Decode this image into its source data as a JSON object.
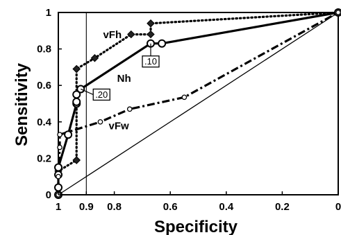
{
  "chart_data": {
    "type": "line",
    "xlabel": "Specificity",
    "ylabel": "Sensitivity",
    "xlim": [
      1,
      0
    ],
    "ylim": [
      0,
      1
    ],
    "x_reversed": true,
    "x_ticks": [
      1,
      0.9,
      0.8,
      0.6,
      0.4,
      0.2,
      0
    ],
    "x_tick_labels": [
      "1",
      "0.9",
      "0.8",
      "0.6",
      "0.4",
      "0.2",
      "0"
    ],
    "y_ticks": [
      0,
      0.2,
      0.4,
      0.6,
      0.8,
      1
    ],
    "y_tick_labels": [
      "0",
      "0.2",
      "0.4",
      "0.6",
      "0.8",
      "1"
    ],
    "grid": false,
    "reference_lines": [
      {
        "kind": "diagonal",
        "from": [
          1,
          0
        ],
        "to": [
          0,
          1
        ]
      },
      {
        "kind": "vertical",
        "x": 0.9
      }
    ],
    "series": [
      {
        "name": "vFh",
        "style": "dotted",
        "marker": "diamond",
        "x": [
          1,
          1,
          0.935,
          0.935,
          0.935,
          0.935,
          0.935,
          0.87,
          0.74,
          0.67,
          0.67,
          0.67,
          0
        ],
        "y": [
          0,
          0.13,
          0.19,
          0.19,
          0.5,
          0.69,
          0.69,
          0.75,
          0.88,
          0.88,
          0.94,
          0.94,
          1
        ]
      },
      {
        "name": "Nh",
        "style": "solid",
        "marker": "circle",
        "x": [
          1,
          1,
          1,
          1,
          0.965,
          0.935,
          0.935,
          0.935,
          0.92,
          0.67,
          0.63,
          0
        ],
        "y": [
          0,
          0.04,
          0.11,
          0.15,
          0.33,
          0.5,
          0.51,
          0.55,
          0.58,
          0.83,
          0.83,
          1
        ]
      },
      {
        "name": "vFw",
        "style": "dashdot",
        "marker": "small-circle",
        "x": [
          1,
          1,
          0.995,
          0.995,
          0.85,
          0.745,
          0.55,
          0
        ],
        "y": [
          0,
          0.1,
          0.26,
          0.33,
          0.4,
          0.47,
          0.535,
          1
        ]
      }
    ],
    "annotations": [
      {
        "text": ".10",
        "x": 0.67,
        "y": 0.83
      },
      {
        "text": ".20",
        "x": 0.92,
        "y": 0.58
      }
    ]
  }
}
